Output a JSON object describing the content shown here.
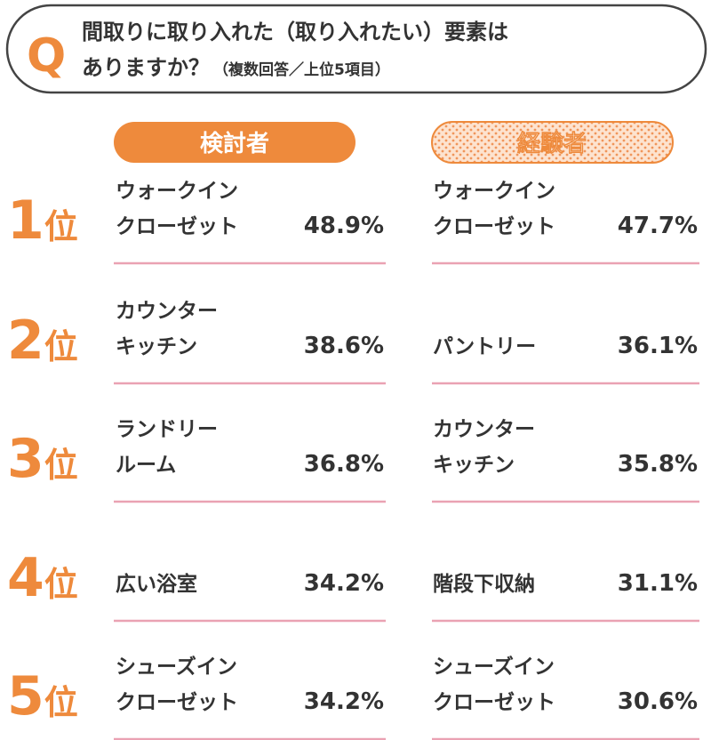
{
  "question": {
    "mark": "Q",
    "line1": "間取りに取り入れた（取り入れたい）要素は",
    "line2": "ありますか？",
    "note": "（複数回答／上位5項目）"
  },
  "columns": [
    "検討者",
    "経験者"
  ],
  "rows": [
    {
      "rank": "1",
      "suffix": "位",
      "cells": [
        {
          "item": [
            "ウォークイン",
            "クローゼット"
          ],
          "pct": "48.9%"
        },
        {
          "item": [
            "ウォークイン",
            "クローゼット"
          ],
          "pct": "47.7%"
        }
      ]
    },
    {
      "rank": "2",
      "suffix": "位",
      "cells": [
        {
          "item": [
            "カウンター",
            "キッチン"
          ],
          "pct": "38.6%"
        },
        {
          "item": [
            "パントリー"
          ],
          "pct": "36.1%"
        }
      ]
    },
    {
      "rank": "3",
      "suffix": "位",
      "cells": [
        {
          "item": [
            "ランドリー",
            "ルーム"
          ],
          "pct": "36.8%"
        },
        {
          "item": [
            "カウンター",
            "キッチン"
          ],
          "pct": "35.8%"
        }
      ]
    },
    {
      "rank": "4",
      "suffix": "位",
      "cells": [
        {
          "item": [
            "広い浴室"
          ],
          "pct": "34.2%"
        },
        {
          "item": [
            "階段下収納"
          ],
          "pct": "31.1%"
        }
      ]
    },
    {
      "rank": "5",
      "suffix": "位",
      "cells": [
        {
          "item": [
            "シューズイン",
            "クローゼット"
          ],
          "pct": "34.2%"
        },
        {
          "item": [
            "シューズイン",
            "クローゼット"
          ],
          "pct": "30.6%"
        }
      ]
    }
  ]
}
